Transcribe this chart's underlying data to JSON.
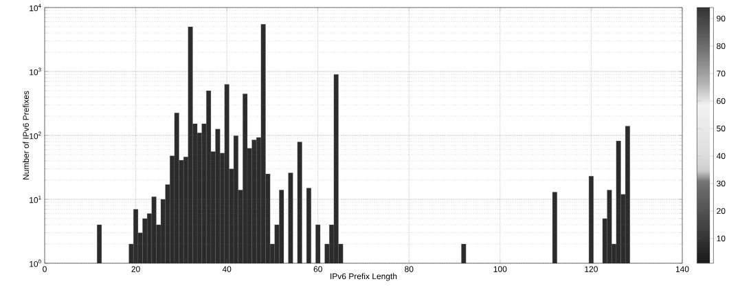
{
  "chart_data": {
    "type": "bar",
    "xlabel": "IPv6 Prefix Length",
    "ylabel": "Number of IPv6 Prefixes",
    "x": [
      12,
      19,
      20,
      21,
      22,
      23,
      24,
      25,
      26,
      27,
      28,
      29,
      30,
      31,
      32,
      33,
      34,
      35,
      36,
      37,
      38,
      39,
      40,
      41,
      42,
      43,
      44,
      45,
      46,
      47,
      48,
      49,
      50,
      51,
      52,
      54,
      56,
      58,
      60,
      62,
      63,
      64,
      65,
      92,
      112,
      120,
      123,
      124,
      125,
      126,
      127,
      128
    ],
    "values": [
      4,
      2,
      7,
      3,
      5,
      6,
      11,
      4,
      10,
      17,
      48,
      225,
      41,
      46,
      5000,
      152,
      110,
      152,
      500,
      56,
      126,
      53,
      630,
      30,
      99,
      14,
      446,
      63,
      85,
      93,
      5500,
      25,
      2,
      4,
      14,
      26,
      79,
      15,
      4,
      2,
      4,
      900,
      2,
      2,
      13,
      23,
      5,
      14,
      2,
      82,
      12,
      140
    ],
    "color": "#2b2b2b",
    "log": "y",
    "grid": true,
    "xlim": [
      0,
      140
    ],
    "xticks": [
      0,
      20,
      40,
      60,
      80,
      100,
      120,
      140
    ],
    "ylim": [
      1,
      10000
    ],
    "yticks": [
      {
        "value": 1,
        "label": "10$^{0}$"
      },
      {
        "value": 10,
        "label": "10$^{1}$"
      },
      {
        "value": 100,
        "label": "10$^{2}$"
      },
      {
        "value": 1000,
        "label": "10$^{3}$"
      },
      {
        "value": 10000,
        "label": "10$^{4}$"
      }
    ],
    "clim": [
      1,
      94
    ],
    "cticks": [
      10,
      20,
      30,
      40,
      50,
      60,
      70,
      80,
      90
    ]
  }
}
